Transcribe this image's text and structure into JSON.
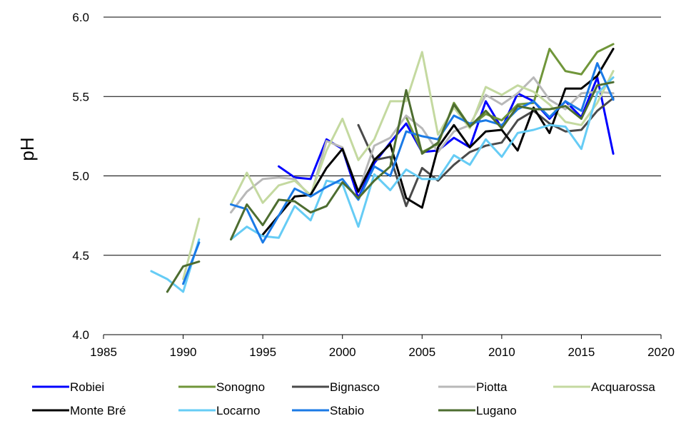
{
  "chart_data": {
    "type": "line",
    "title": "",
    "xlabel": "",
    "ylabel": "pH",
    "xlim": [
      1985,
      2020
    ],
    "ylim": [
      4.0,
      6.0
    ],
    "x_ticks": [
      "1985",
      "1990",
      "1995",
      "2000",
      "2005",
      "2010",
      "2015",
      "2020"
    ],
    "y_ticks": [
      "4.0",
      "4.5",
      "5.0",
      "5.5",
      "6.0"
    ],
    "grid": "horizontal",
    "legend_position": "bottom",
    "series": [
      {
        "name": "Robiei",
        "color": "#0000ff",
        "points": [
          [
            1996,
            5.06
          ],
          [
            1997,
            4.99
          ],
          [
            1998,
            4.98
          ],
          [
            1999,
            5.23
          ],
          [
            2000,
            5.17
          ],
          [
            2001,
            4.86
          ],
          [
            2002,
            5.08
          ],
          [
            2003,
            5.21
          ],
          [
            2004,
            5.33
          ],
          [
            2005,
            5.15
          ],
          [
            2006,
            5.16
          ],
          [
            2007,
            5.24
          ],
          [
            2008,
            5.18
          ],
          [
            2009,
            5.47
          ],
          [
            2010,
            5.3
          ],
          [
            2011,
            5.52
          ],
          [
            2012,
            5.47
          ],
          [
            2013,
            5.36
          ],
          [
            2014,
            5.47
          ],
          [
            2015,
            5.37
          ],
          [
            2016,
            5.62
          ],
          [
            2017,
            5.14
          ]
        ]
      },
      {
        "name": "Sonogno",
        "color": "#70963a",
        "points": [
          [
            2004,
            5.37
          ],
          [
            2005,
            5.15
          ],
          [
            2006,
            5.2
          ],
          [
            2007,
            5.46
          ],
          [
            2008,
            5.31
          ],
          [
            2009,
            5.39
          ],
          [
            2010,
            5.35
          ],
          [
            2011,
            5.45
          ],
          [
            2012,
            5.46
          ],
          [
            2013,
            5.8
          ],
          [
            2014,
            5.66
          ],
          [
            2015,
            5.64
          ],
          [
            2016,
            5.78
          ],
          [
            2017,
            5.83
          ]
        ]
      },
      {
        "name": "Bignasco",
        "color": "#4a4a4a",
        "points": [
          [
            2001,
            5.32
          ],
          [
            2002,
            5.1
          ],
          [
            2003,
            5.12
          ],
          [
            2004,
            4.81
          ],
          [
            2005,
            5.05
          ],
          [
            2006,
            4.97
          ],
          [
            2007,
            5.07
          ],
          [
            2008,
            5.15
          ],
          [
            2009,
            5.19
          ],
          [
            2010,
            5.21
          ],
          [
            2011,
            5.35
          ],
          [
            2012,
            5.41
          ],
          [
            2013,
            5.33
          ],
          [
            2014,
            5.28
          ],
          [
            2015,
            5.29
          ],
          [
            2016,
            5.41
          ],
          [
            2017,
            5.49
          ]
        ]
      },
      {
        "name": "Piotta",
        "color": "#b8b8b8",
        "points": [
          [
            1993,
            4.77
          ],
          [
            1994,
            4.9
          ],
          [
            1995,
            4.98
          ],
          [
            1996,
            4.99
          ],
          [
            1997,
            4.98
          ],
          [
            1998,
            4.87
          ],
          [
            1999,
            5.22
          ],
          [
            2000,
            5.18
          ],
          [
            2001,
            4.9
          ],
          [
            2002,
            5.19
          ],
          [
            2003,
            5.24
          ],
          [
            2004,
            5.38
          ],
          [
            2005,
            5.3
          ],
          [
            2006,
            5.15
          ],
          [
            2007,
            5.28
          ],
          [
            2008,
            5.32
          ],
          [
            2009,
            5.51
          ],
          [
            2010,
            5.45
          ],
          [
            2011,
            5.52
          ],
          [
            2012,
            5.62
          ],
          [
            2013,
            5.48
          ],
          [
            2014,
            5.42
          ],
          [
            2015,
            5.52
          ],
          [
            2016,
            5.53
          ],
          [
            2017,
            5.52
          ]
        ]
      },
      {
        "name": "Acquarossa",
        "color": "#c4d9a0",
        "points": [
          [
            1990,
            4.35
          ],
          [
            1991,
            4.73
          ],
          [
            1993,
            4.82
          ],
          [
            1994,
            5.02
          ],
          [
            1995,
            4.83
          ],
          [
            1996,
            4.94
          ],
          [
            1997,
            4.97
          ],
          [
            1998,
            4.88
          ],
          [
            1999,
            5.16
          ],
          [
            2000,
            5.36
          ],
          [
            2001,
            5.1
          ],
          [
            2002,
            5.23
          ],
          [
            2003,
            5.47
          ],
          [
            2004,
            5.47
          ],
          [
            2005,
            5.78
          ],
          [
            2006,
            5.26
          ],
          [
            2007,
            5.43
          ],
          [
            2008,
            5.3
          ],
          [
            2009,
            5.56
          ],
          [
            2010,
            5.51
          ],
          [
            2011,
            5.57
          ],
          [
            2012,
            5.53
          ],
          [
            2013,
            5.45
          ],
          [
            2014,
            5.34
          ],
          [
            2015,
            5.32
          ],
          [
            2016,
            5.46
          ],
          [
            2017,
            5.66
          ]
        ]
      },
      {
        "name": "Monte Bré",
        "color": "#000000",
        "points": [
          [
            1995,
            4.63
          ],
          [
            1996,
            4.75
          ],
          [
            1997,
            4.87
          ],
          [
            1998,
            4.88
          ],
          [
            1999,
            5.05
          ],
          [
            2000,
            5.17
          ],
          [
            2001,
            4.9
          ],
          [
            2002,
            5.1
          ],
          [
            2003,
            5.2
          ],
          [
            2004,
            4.86
          ],
          [
            2005,
            4.8
          ],
          [
            2006,
            5.18
          ],
          [
            2007,
            5.32
          ],
          [
            2008,
            5.18
          ],
          [
            2009,
            5.28
          ],
          [
            2010,
            5.29
          ],
          [
            2011,
            5.16
          ],
          [
            2012,
            5.43
          ],
          [
            2013,
            5.27
          ],
          [
            2014,
            5.55
          ],
          [
            2015,
            5.55
          ],
          [
            2016,
            5.63
          ],
          [
            2017,
            5.8
          ]
        ]
      },
      {
        "name": "Locarno",
        "color": "#66ccf5",
        "points": [
          [
            1988,
            4.4
          ],
          [
            1989,
            4.35
          ],
          [
            1990,
            4.27
          ],
          [
            1991,
            4.6
          ],
          [
            1993,
            4.6
          ],
          [
            1994,
            4.68
          ],
          [
            1995,
            4.62
          ],
          [
            1996,
            4.61
          ],
          [
            1997,
            4.81
          ],
          [
            1998,
            4.72
          ],
          [
            1999,
            4.97
          ],
          [
            2000,
            4.95
          ],
          [
            2001,
            4.68
          ],
          [
            2002,
            5.01
          ],
          [
            2003,
            4.91
          ],
          [
            2004,
            5.04
          ],
          [
            2005,
            4.98
          ],
          [
            2006,
            4.98
          ],
          [
            2007,
            5.13
          ],
          [
            2008,
            5.07
          ],
          [
            2009,
            5.23
          ],
          [
            2010,
            5.12
          ],
          [
            2011,
            5.27
          ],
          [
            2012,
            5.29
          ],
          [
            2013,
            5.32
          ],
          [
            2014,
            5.31
          ],
          [
            2015,
            5.17
          ],
          [
            2016,
            5.52
          ],
          [
            2017,
            5.62
          ]
        ]
      },
      {
        "name": "Stabio",
        "color": "#1a7ae6",
        "points": [
          [
            1990,
            4.32
          ],
          [
            1991,
            4.58
          ],
          [
            1993,
            4.82
          ],
          [
            1994,
            4.79
          ],
          [
            1995,
            4.58
          ],
          [
            1996,
            4.75
          ],
          [
            1997,
            4.92
          ],
          [
            1998,
            4.87
          ],
          [
            1999,
            4.93
          ],
          [
            2000,
            4.98
          ],
          [
            2001,
            4.85
          ],
          [
            2002,
            5.06
          ],
          [
            2003,
            5.0
          ],
          [
            2004,
            5.28
          ],
          [
            2005,
            5.25
          ],
          [
            2006,
            5.23
          ],
          [
            2007,
            5.38
          ],
          [
            2008,
            5.33
          ],
          [
            2009,
            5.35
          ],
          [
            2010,
            5.32
          ],
          [
            2011,
            5.42
          ],
          [
            2012,
            5.47
          ],
          [
            2013,
            5.37
          ],
          [
            2014,
            5.47
          ],
          [
            2015,
            5.41
          ],
          [
            2016,
            5.71
          ],
          [
            2017,
            5.48
          ]
        ]
      },
      {
        "name": "Lugano",
        "color": "#4d6d30",
        "points": [
          [
            1989,
            4.27
          ],
          [
            1990,
            4.43
          ],
          [
            1991,
            4.46
          ],
          [
            1993,
            4.6
          ],
          [
            1994,
            4.82
          ],
          [
            1995,
            4.69
          ],
          [
            1996,
            4.85
          ],
          [
            1997,
            4.84
          ],
          [
            1998,
            4.77
          ],
          [
            1999,
            4.81
          ],
          [
            2000,
            4.96
          ],
          [
            2001,
            4.86
          ],
          [
            2002,
            4.97
          ],
          [
            2003,
            5.06
          ],
          [
            2004,
            5.54
          ],
          [
            2005,
            5.14
          ],
          [
            2006,
            5.21
          ],
          [
            2007,
            5.45
          ],
          [
            2008,
            5.31
          ],
          [
            2009,
            5.41
          ],
          [
            2010,
            5.3
          ],
          [
            2011,
            5.44
          ],
          [
            2012,
            5.42
          ],
          [
            2013,
            5.42
          ],
          [
            2014,
            5.44
          ],
          [
            2015,
            5.36
          ],
          [
            2016,
            5.57
          ],
          [
            2017,
            5.59
          ]
        ]
      }
    ]
  }
}
